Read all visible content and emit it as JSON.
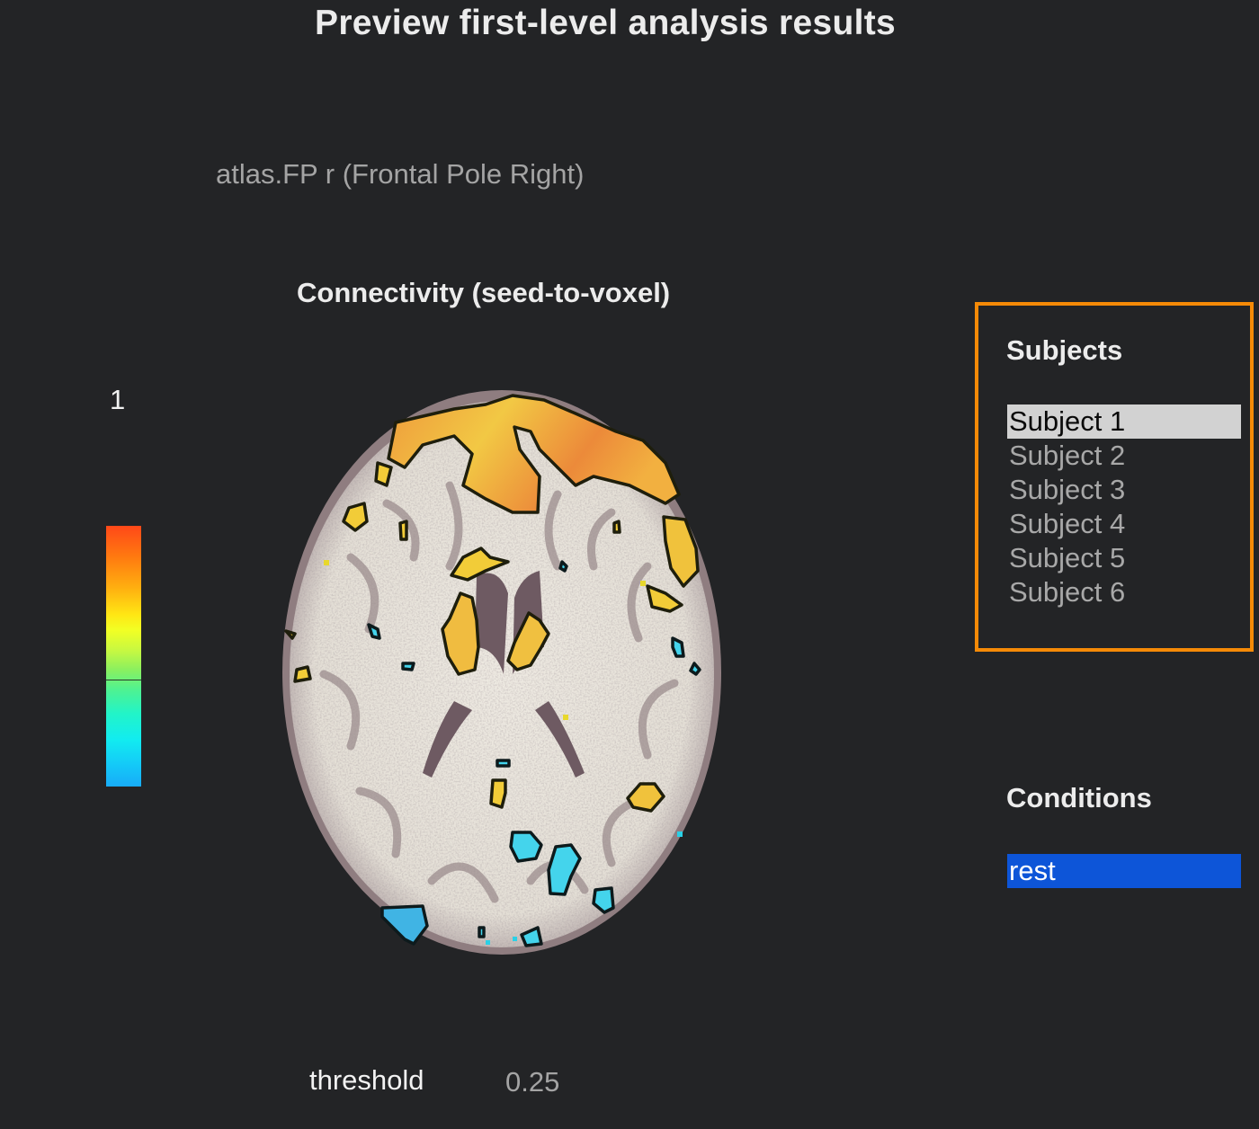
{
  "header": {
    "title": "Preview first-level analysis results"
  },
  "seed": {
    "label": "atlas.FP r (Frontal Pole Right)"
  },
  "map": {
    "title": "Connectivity (seed-to-voxel)"
  },
  "colorbar": {
    "max_label": "1",
    "colors": [
      "#ff4818",
      "#ffe614",
      "#8cf05e",
      "#12ecf0",
      "#18acf8"
    ]
  },
  "threshold": {
    "label": "threshold",
    "value": "0.25"
  },
  "subjects": {
    "title": "Subjects",
    "items": [
      "Subject 1",
      "Subject 2",
      "Subject 3",
      "Subject 4",
      "Subject 5",
      "Subject 6"
    ],
    "selected": "Subject 1"
  },
  "conditions": {
    "title": "Conditions",
    "items": [
      "rest"
    ],
    "selected": "rest"
  },
  "colors": {
    "background": "#232426",
    "highlight_border": "#f58a07",
    "positive_cluster": "#f2cc38",
    "negative_cluster": "#44d4ec",
    "selection_blue": "#0d55d8"
  }
}
